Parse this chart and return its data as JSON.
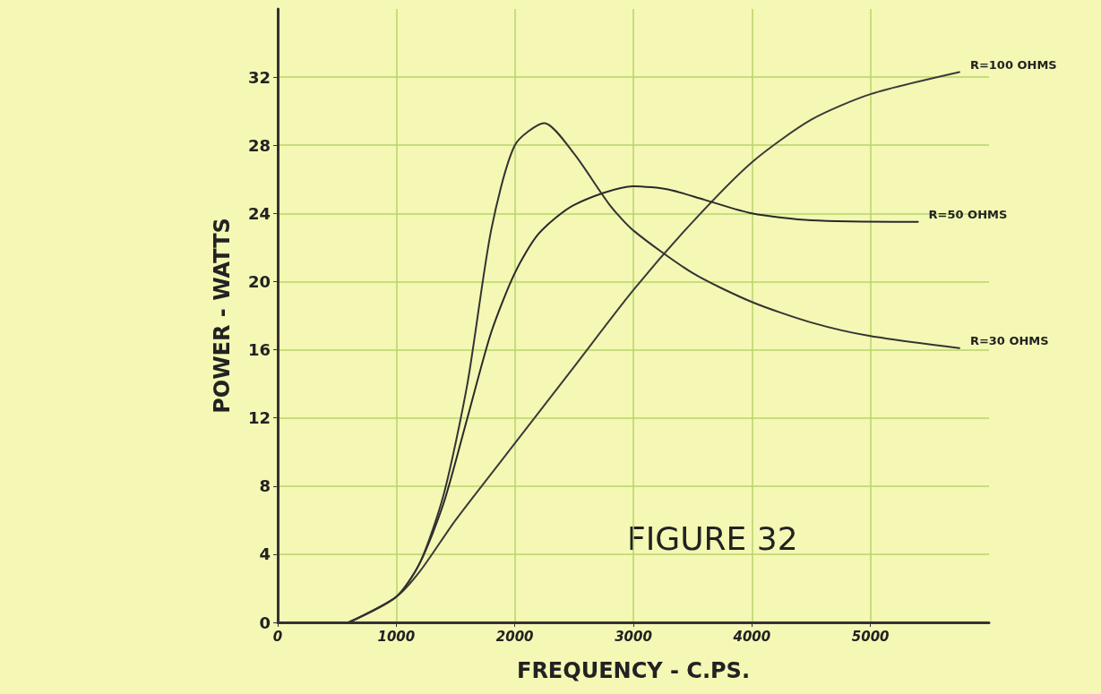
{
  "chart_data": {
    "type": "line",
    "xlabel": "FREQUENCY - C.PS.",
    "ylabel": "POWER - WATTS",
    "annotations": [
      "FIGURE 32"
    ],
    "xlim": [
      0,
      6000
    ],
    "xticks": [
      0,
      1000,
      2000,
      3000,
      4000,
      5000
    ],
    "ylim": [
      0,
      36
    ],
    "yticks": [
      0,
      4,
      8,
      12,
      16,
      20,
      24,
      28,
      32
    ],
    "grid": true,
    "marker": "none",
    "line_style": "solid",
    "legend": false,
    "series": [
      {
        "name": "R=100 OHMS",
        "color": "#3a3a3a",
        "x": [
          600,
          1000,
          1200,
          1500,
          2000,
          2500,
          3000,
          3500,
          4000,
          4500,
          5000,
          5750
        ],
        "values": [
          0,
          1.5,
          3,
          6,
          10.5,
          15,
          19.5,
          23.5,
          27,
          29.5,
          31,
          32.3
        ]
      },
      {
        "name": "R=50 OHMS",
        "color": "#2a2a2a",
        "x": [
          600,
          1000,
          1200,
          1400,
          1600,
          1800,
          2000,
          2200,
          2500,
          3000,
          3300,
          3600,
          4000,
          4500,
          5400
        ],
        "values": [
          0,
          1.5,
          3.5,
          7,
          12,
          17,
          20.5,
          22.8,
          24.5,
          25.6,
          25.4,
          24.8,
          24,
          23.6,
          23.5
        ]
      },
      {
        "name": "R=30 OHMS",
        "color": "#333333",
        "x": [
          600,
          1000,
          1200,
          1400,
          1600,
          1800,
          2000,
          2250,
          2500,
          2800,
          3000,
          3500,
          4000,
          4500,
          5000,
          5750
        ],
        "values": [
          0,
          1.5,
          3.5,
          7.5,
          14,
          23,
          28,
          29.3,
          27.5,
          24.5,
          23,
          20.5,
          18.8,
          17.6,
          16.8,
          16.1
        ]
      }
    ]
  }
}
